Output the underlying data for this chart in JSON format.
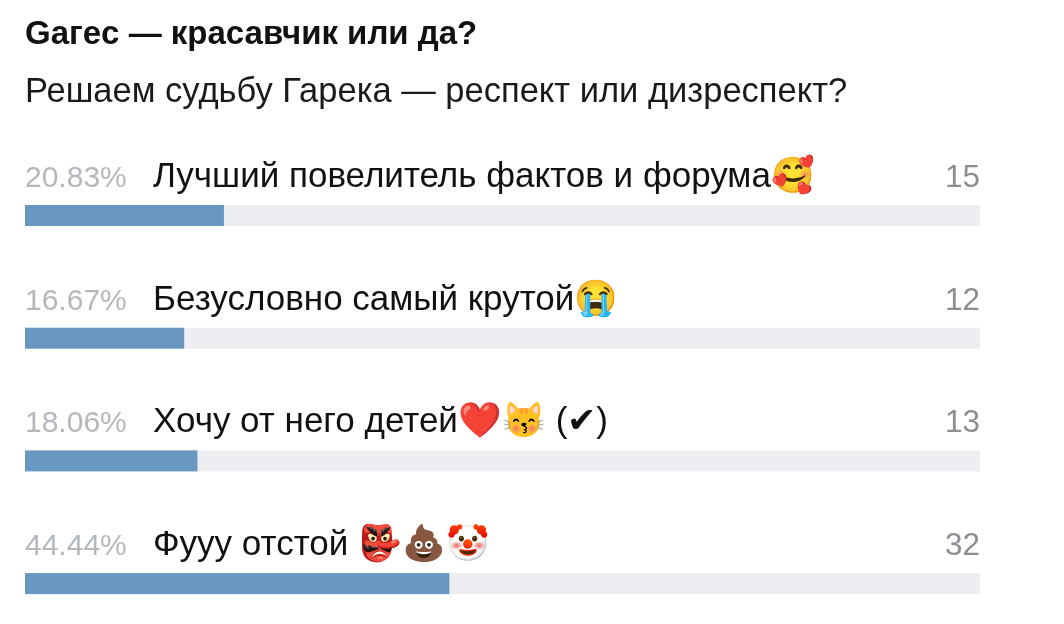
{
  "chart_data": {
    "type": "bar",
    "orientation": "horizontal",
    "title": "Gaгec — красавчик или да?",
    "subtitle": "Решаем судьбу Гарека — респект или дизреспект?",
    "categories": [
      "Лучший повелитель фактов и форума🥰",
      "Безусловно самый крутой😭️",
      "Хочу от него детей❤️😽️  (✔)",
      "Фууу отстой 👺💩🤡"
    ],
    "values": [
      20.83,
      16.67,
      18.06,
      44.44
    ],
    "value_labels": [
      "20.83%",
      "16.67%",
      "18.06%",
      "44.44%"
    ],
    "color": "#6897c2",
    "xlim": [
      0,
      100
    ],
    "tick_labels": "y",
    "annotations": [
      "15",
      "12",
      "13",
      "32"
    ]
  }
}
